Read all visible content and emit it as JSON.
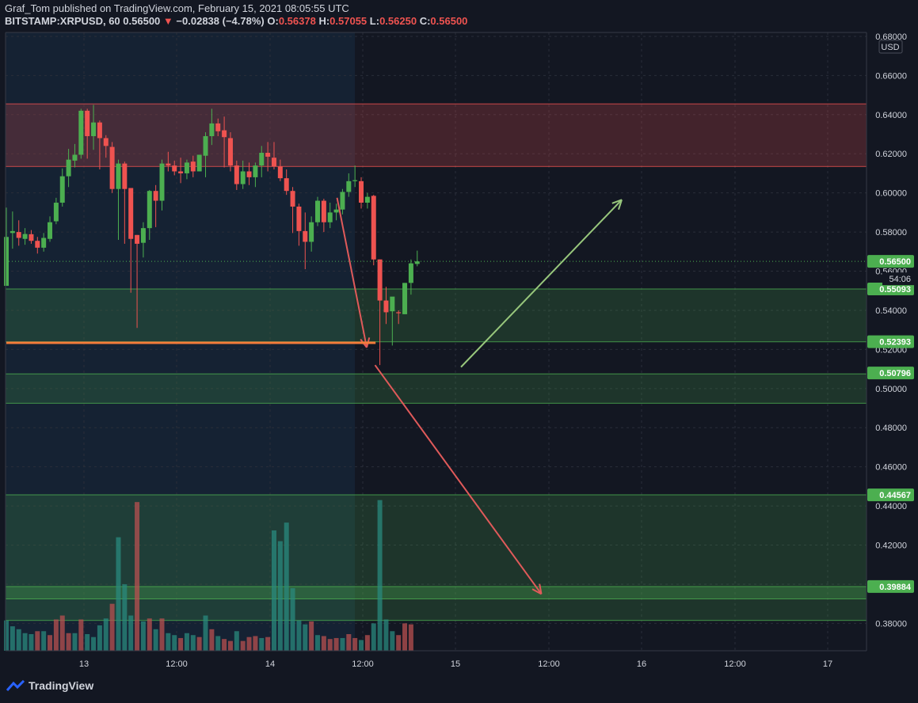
{
  "header": {
    "publisher": "Graf_Tom published on TradingView.com, February 15, 2021 08:05:55 UTC",
    "symbol": "BITSTAMP:XRPUSD, 60",
    "last": "0.56500",
    "arrow": "▼",
    "change": "−0.02838 (−4.78%)",
    "o_label": "O:",
    "o_value": "0.56378",
    "h_label": "H:",
    "h_value": "0.57055",
    "l_label": "L:",
    "l_value": "0.56250",
    "c_label": "C:",
    "c_value": "0.56500"
  },
  "footer": {
    "brand": "TradingView"
  },
  "colors": {
    "background": "#131722",
    "up": "#26a69a",
    "down": "#ef5350",
    "up_candle": "#4caf50",
    "grid": "#2a2e39",
    "text": "#d1d4dc"
  },
  "chart_data": {
    "type": "candlestick",
    "currency": "USD",
    "ylim": [
      0.366,
      0.682
    ],
    "y_ticks": [
      "0.68000",
      "0.66000",
      "0.64000",
      "0.62000",
      "0.60000",
      "0.58000",
      "0.56000",
      "0.54000",
      "0.52000",
      "0.50000",
      "0.48000",
      "0.46000",
      "0.44000",
      "0.42000",
      "0.40000",
      "0.38000"
    ],
    "x_ticks": [
      "13",
      "12:00",
      "14",
      "12:00",
      "15",
      "12:00",
      "16",
      "12:00",
      "17"
    ],
    "grid": true,
    "zones": [
      {
        "from": 0.6135,
        "to": 0.6455,
        "color": "#f05350",
        "opacity": 0.22
      },
      {
        "from": 0.5239,
        "to": 0.5509,
        "color": "#4caf50",
        "opacity": 0.2
      },
      {
        "from": 0.4925,
        "to": 0.5075,
        "color": "#4caf50",
        "opacity": 0.2
      },
      {
        "from": 0.3815,
        "to": 0.4457,
        "color": "#4caf50",
        "opacity": 0.2
      },
      {
        "from": 0.3925,
        "to": 0.3988,
        "color": "#4caf50",
        "opacity": 0.3
      }
    ],
    "levels": [
      "0.55093",
      "0.52393",
      "0.50796",
      "0.44567",
      "0.39884"
    ],
    "price_label": "0.56500",
    "countdown": "54:06",
    "candles": [
      [
        0.5525,
        0.5925,
        0.5525,
        0.5775
      ],
      [
        0.5795,
        0.5905,
        0.5715,
        0.5805
      ],
      [
        0.58,
        0.586,
        0.573,
        0.577
      ],
      [
        0.5765,
        0.582,
        0.5735,
        0.579
      ],
      [
        0.5789,
        0.581,
        0.574,
        0.5755
      ],
      [
        0.5755,
        0.5775,
        0.569,
        0.572
      ],
      [
        0.572,
        0.5795,
        0.57,
        0.577
      ],
      [
        0.5765,
        0.588,
        0.575,
        0.585
      ],
      [
        0.5855,
        0.5975,
        0.584,
        0.595
      ],
      [
        0.595,
        0.6125,
        0.593,
        0.6085
      ],
      [
        0.6085,
        0.6225,
        0.603,
        0.617
      ],
      [
        0.6165,
        0.625,
        0.613,
        0.6195
      ],
      [
        0.6195,
        0.643,
        0.6175,
        0.642
      ],
      [
        0.642,
        0.643,
        0.6175,
        0.629
      ],
      [
        0.629,
        0.645,
        0.622,
        0.636
      ],
      [
        0.636,
        0.637,
        0.612,
        0.628
      ],
      [
        0.628,
        0.6295,
        0.618,
        0.624
      ],
      [
        0.6235,
        0.626,
        0.6,
        0.602
      ],
      [
        0.602,
        0.617,
        0.576,
        0.615
      ],
      [
        0.615,
        0.616,
        0.574,
        0.602
      ],
      [
        0.6025,
        0.6025,
        0.549,
        0.5765
      ],
      [
        0.5785,
        0.5785,
        0.531,
        0.574
      ],
      [
        0.5745,
        0.585,
        0.567,
        0.582
      ],
      [
        0.582,
        0.6015,
        0.576,
        0.601
      ],
      [
        0.601,
        0.604,
        0.5825,
        0.596
      ],
      [
        0.596,
        0.617,
        0.591,
        0.615
      ],
      [
        0.615,
        0.621,
        0.611,
        0.614
      ],
      [
        0.614,
        0.6165,
        0.609,
        0.611
      ],
      [
        0.611,
        0.618,
        0.605,
        0.61
      ],
      [
        0.61,
        0.617,
        0.607,
        0.6155
      ],
      [
        0.616,
        0.619,
        0.608,
        0.611
      ],
      [
        0.611,
        0.6195,
        0.611,
        0.6195
      ],
      [
        0.619,
        0.631,
        0.608,
        0.629
      ],
      [
        0.629,
        0.643,
        0.6245,
        0.6355
      ],
      [
        0.6355,
        0.638,
        0.629,
        0.6315
      ],
      [
        0.632,
        0.639,
        0.613,
        0.6285
      ],
      [
        0.628,
        0.631,
        0.611,
        0.614
      ],
      [
        0.614,
        0.6165,
        0.6015,
        0.6045
      ],
      [
        0.6045,
        0.6165,
        0.602,
        0.611
      ],
      [
        0.611,
        0.6155,
        0.604,
        0.608
      ],
      [
        0.608,
        0.6155,
        0.603,
        0.614
      ],
      [
        0.614,
        0.624,
        0.608,
        0.6205
      ],
      [
        0.6205,
        0.626,
        0.611,
        0.6185
      ],
      [
        0.618,
        0.626,
        0.612,
        0.6135
      ],
      [
        0.6135,
        0.617,
        0.606,
        0.6075
      ],
      [
        0.6075,
        0.612,
        0.599,
        0.601
      ],
      [
        0.601,
        0.603,
        0.5795,
        0.593
      ],
      [
        0.593,
        0.5945,
        0.573,
        0.5805
      ],
      [
        0.5805,
        0.59,
        0.561,
        0.575
      ],
      [
        0.575,
        0.588,
        0.57,
        0.585
      ],
      [
        0.585,
        0.598,
        0.583,
        0.596
      ],
      [
        0.596,
        0.597,
        0.58,
        0.585
      ],
      [
        0.585,
        0.595,
        0.582,
        0.59
      ],
      [
        0.59,
        0.5945,
        0.586,
        0.5915
      ],
      [
        0.5915,
        0.602,
        0.589,
        0.6005
      ],
      [
        0.6005,
        0.61,
        0.598,
        0.606
      ],
      [
        0.606,
        0.614,
        0.603,
        0.6065
      ],
      [
        0.606,
        0.608,
        0.592,
        0.595
      ],
      [
        0.595,
        0.6,
        0.592,
        0.598
      ],
      [
        0.5985,
        0.599,
        0.563,
        0.566
      ],
      [
        0.566,
        0.566,
        0.512,
        0.545
      ],
      [
        0.545,
        0.552,
        0.533,
        0.539
      ],
      [
        0.5395,
        0.5455,
        0.522,
        0.547
      ],
      [
        0.539,
        0.54,
        0.533,
        0.5385
      ],
      [
        0.538,
        0.554,
        0.538,
        0.554
      ],
      [
        0.554,
        0.566,
        0.548,
        0.564
      ],
      [
        0.5637,
        0.5705,
        0.5625,
        0.565
      ]
    ],
    "volume": [
      [
        0.3815,
        1
      ],
      [
        0.3785,
        1
      ],
      [
        0.377,
        1
      ],
      [
        0.375,
        1
      ],
      [
        0.3745,
        1
      ],
      [
        0.376,
        0
      ],
      [
        0.376,
        1
      ],
      [
        0.374,
        0
      ],
      [
        0.382,
        0
      ],
      [
        0.384,
        0
      ],
      [
        0.375,
        0
      ],
      [
        0.375,
        1
      ],
      [
        0.382,
        0
      ],
      [
        0.3745,
        1
      ],
      [
        0.373,
        1
      ],
      [
        0.379,
        1
      ],
      [
        0.3825,
        1
      ],
      [
        0.39,
        0
      ],
      [
        0.424,
        1
      ],
      [
        0.4,
        1
      ],
      [
        0.384,
        1
      ],
      [
        0.442,
        0
      ],
      [
        0.381,
        1
      ],
      [
        0.3825,
        0
      ],
      [
        0.377,
        1
      ],
      [
        0.3825,
        0
      ],
      [
        0.375,
        1
      ],
      [
        0.374,
        1
      ],
      [
        0.3725,
        0
      ],
      [
        0.375,
        1
      ],
      [
        0.374,
        1
      ],
      [
        0.373,
        0
      ],
      [
        0.384,
        1
      ],
      [
        0.377,
        0
      ],
      [
        0.3735,
        1
      ],
      [
        0.372,
        0
      ],
      [
        0.371,
        0
      ],
      [
        0.376,
        1
      ],
      [
        0.371,
        0
      ],
      [
        0.373,
        0
      ],
      [
        0.3735,
        0
      ],
      [
        0.3725,
        1
      ],
      [
        0.373,
        0
      ],
      [
        0.4275,
        1
      ],
      [
        0.422,
        1
      ],
      [
        0.4315,
        1
      ],
      [
        0.398,
        1
      ],
      [
        0.3815,
        1
      ],
      [
        0.3795,
        1
      ],
      [
        0.381,
        0
      ],
      [
        0.374,
        1
      ],
      [
        0.3735,
        0
      ],
      [
        0.372,
        0
      ],
      [
        0.3725,
        0
      ],
      [
        0.3725,
        1
      ],
      [
        0.3745,
        0
      ],
      [
        0.3725,
        0
      ],
      [
        0.3715,
        1
      ],
      [
        0.374,
        0
      ],
      [
        0.38,
        1
      ],
      [
        0.443,
        1
      ],
      [
        0.382,
        1
      ],
      [
        0.376,
        1
      ],
      [
        0.374,
        0
      ],
      [
        0.38,
        0
      ],
      [
        0.3795,
        0
      ],
      [
        0.366,
        0
      ]
    ],
    "drawings": [
      {
        "kind": "arrow",
        "color": "#e05a5a",
        "from": [
          0.5965,
          0.5975
        ],
        "to": [
          0.65,
          0.521
        ]
      },
      {
        "kind": "arrow",
        "color": "#e05a5a",
        "from": [
          0.665,
          0.512
        ],
        "to": [
          0.965,
          0.395
        ]
      },
      {
        "kind": "arrow",
        "color": "#98c77c",
        "from": [
          0.82,
          0.511
        ],
        "to": [
          1.11,
          0.5965
        ]
      },
      {
        "kind": "line",
        "color": "#f57c3a",
        "from": [
          0.0,
          0.5234
        ],
        "to": [
          0.666,
          0.5234
        ]
      }
    ]
  }
}
